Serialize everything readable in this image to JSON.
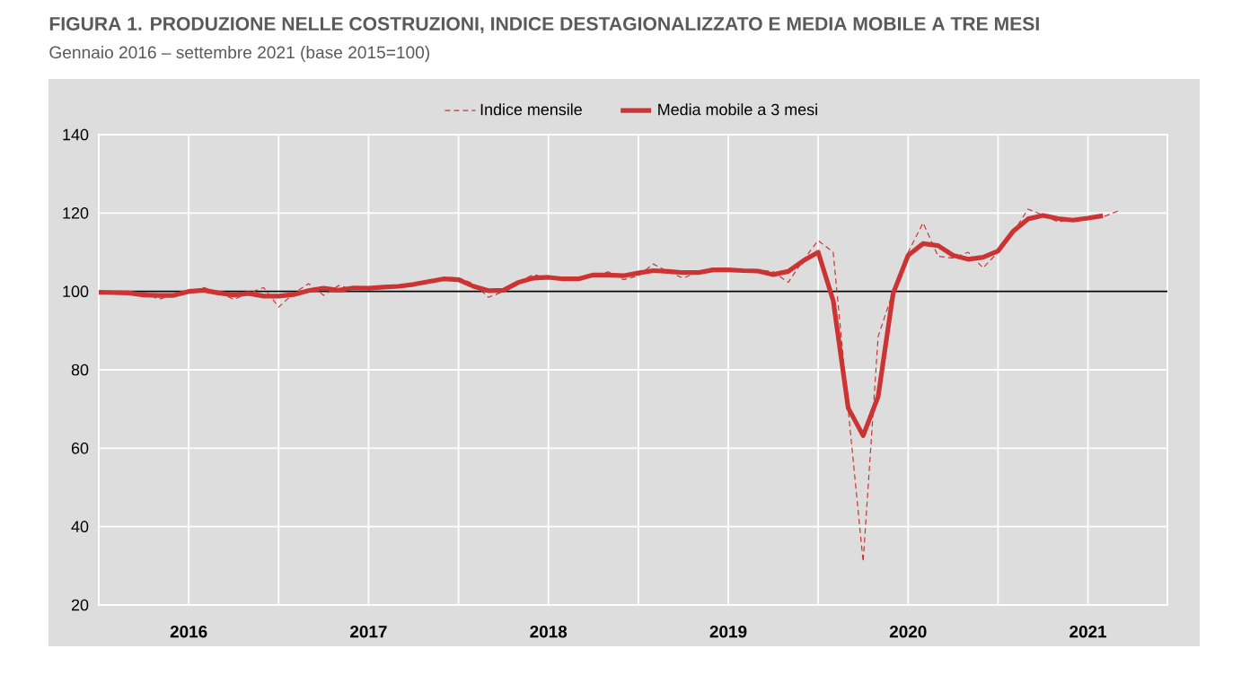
{
  "chart_data": {
    "type": "line",
    "title": "FIGURA 1. PRODUZIONE NELLE COSTRUZIONI, INDICE DESTAGIONALIZZATO E MEDIA MOBILE A TRE MESI",
    "subtitle": "Gennaio 2016 – settembre 2021 (base 2015=100)",
    "x": [
      "2016-01",
      "2016-02",
      "2016-03",
      "2016-04",
      "2016-05",
      "2016-06",
      "2016-07",
      "2016-08",
      "2016-09",
      "2016-10",
      "2016-11",
      "2016-12",
      "2017-01",
      "2017-02",
      "2017-03",
      "2017-04",
      "2017-05",
      "2017-06",
      "2017-07",
      "2017-08",
      "2017-09",
      "2017-10",
      "2017-11",
      "2017-12",
      "2018-01",
      "2018-02",
      "2018-03",
      "2018-04",
      "2018-05",
      "2018-06",
      "2018-07",
      "2018-08",
      "2018-09",
      "2018-10",
      "2018-11",
      "2018-12",
      "2019-01",
      "2019-02",
      "2019-03",
      "2019-04",
      "2019-05",
      "2019-06",
      "2019-07",
      "2019-08",
      "2019-09",
      "2019-10",
      "2019-11",
      "2019-12",
      "2020-01",
      "2020-02",
      "2020-03",
      "2020-04",
      "2020-05",
      "2020-06",
      "2020-07",
      "2020-08",
      "2020-09",
      "2020-10",
      "2020-11",
      "2020-12",
      "2021-01",
      "2021-02",
      "2021-03",
      "2021-04",
      "2021-05",
      "2021-06",
      "2021-07",
      "2021-08",
      "2021-09"
    ],
    "series": [
      {
        "name": "Indice mensile",
        "color": "#cc3333",
        "line_style": "dashed",
        "values": [
          100.0,
          99.6,
          99.4,
          99.8,
          98.0,
          99.2,
          99.8,
          101.0,
          99.8,
          98.0,
          99.5,
          101.0,
          96.0,
          99.5,
          102.0,
          99.0,
          101.5,
          100.5,
          100.8,
          101.0,
          101.5,
          101.5,
          102.5,
          103.5,
          103.5,
          102.0,
          98.5,
          100.0,
          102.5,
          104.3,
          103.5,
          103.0,
          103.0,
          104.0,
          105.0,
          103.0,
          104.0,
          107.0,
          105.0,
          103.4,
          105.0,
          106.0,
          105.5,
          105.0,
          105.5,
          105.0,
          102.3,
          108.0,
          113.0,
          110.0,
          70.0,
          31.0,
          88.5,
          100.0,
          110.0,
          117.5,
          109.0,
          108.5,
          110.0,
          106.0,
          110.0,
          115.0,
          121.0,
          119.5,
          117.7,
          118.5,
          118.5,
          119.0,
          120.5
        ]
      },
      {
        "name": "Media mobile a 3 mesi",
        "color": "#cc3333",
        "line_style": "solid",
        "values": [
          99.8,
          99.7,
          99.6,
          99.1,
          99.0,
          99.0,
          100.0,
          100.3,
          99.6,
          99.1,
          99.5,
          98.8,
          98.8,
          99.2,
          100.2,
          100.8,
          100.3,
          100.9,
          100.8,
          101.1,
          101.3,
          101.8,
          102.5,
          103.2,
          103.0,
          101.3,
          100.2,
          100.3,
          102.3,
          103.4,
          103.6,
          103.2,
          103.2,
          104.2,
          104.2,
          104.0,
          104.7,
          105.3,
          105.1,
          104.8,
          104.8,
          105.5,
          105.5,
          105.3,
          105.2,
          104.3,
          105.1,
          107.8,
          110.0,
          97.7,
          70.3,
          63.2,
          73.2,
          99.5,
          109.2,
          112.2,
          111.7,
          109.2,
          108.2,
          108.7,
          110.3,
          115.3,
          118.5,
          119.4,
          118.6,
          118.2,
          118.7,
          119.3,
          null
        ]
      }
    ],
    "xlim": [
      "2016-01",
      "2021-12"
    ],
    "xticks": [
      {
        "value": "2016-07",
        "label": "2016"
      },
      {
        "value": "2017-01",
        "label": null
      },
      {
        "value": "2017-07",
        "label": "2017"
      },
      {
        "value": "2018-01",
        "label": null
      },
      {
        "value": "2018-07",
        "label": "2018"
      },
      {
        "value": "2019-01",
        "label": null
      },
      {
        "value": "2019-07",
        "label": "2019"
      },
      {
        "value": "2020-01",
        "label": null
      },
      {
        "value": "2020-07",
        "label": "2020"
      },
      {
        "value": "2021-01",
        "label": null
      },
      {
        "value": "2021-07",
        "label": "2021"
      }
    ],
    "ylim": [
      20,
      140
    ],
    "yticks": [
      20,
      40,
      60,
      80,
      100,
      120,
      140
    ],
    "ref_lines": [
      {
        "axis": "y",
        "value": 100,
        "color": "#000000"
      }
    ],
    "grid": true,
    "legend": "top",
    "marker": "none"
  }
}
